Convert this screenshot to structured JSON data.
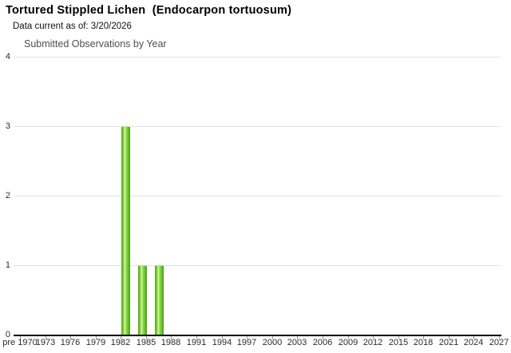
{
  "header": {
    "title": "Tortured Stippled Lichen  (Endocarpon tortuosum)",
    "data_current": "Data current as of: 3/20/2026"
  },
  "chart_data": {
    "type": "bar",
    "title": "Submitted Observations by Year",
    "xlabel": "",
    "ylabel": "",
    "ylim": [
      0,
      4
    ],
    "y_ticks": [
      0,
      1,
      2,
      3,
      4
    ],
    "grid": "horizontal",
    "legend": "none",
    "x_start_year": 1970,
    "x_end_year": 2027,
    "x_tick_step": 3,
    "x_tick_labels": [
      "pre 1970",
      "1973",
      "1976",
      "1979",
      "1982",
      "1985",
      "1988",
      "1991",
      "1994",
      "1997",
      "2000",
      "2003",
      "2006",
      "2009",
      "2012",
      "2015",
      "2018",
      "2021",
      "2024",
      "2027"
    ],
    "categories": [
      1982,
      1984,
      1986
    ],
    "values": [
      3,
      1,
      1
    ],
    "series_name": "Submitted Observations",
    "bar_gradient": [
      "#53a021",
      "#6dc42f",
      "#9ce055",
      "#d9f8ae",
      "#8ed948",
      "#6dc42f",
      "#4c9a1d"
    ],
    "gridline_color": "#e4e4e4",
    "axis_color": "#000000",
    "tick_color": "#9a9a9a",
    "text_color": "#2b2b2b"
  }
}
